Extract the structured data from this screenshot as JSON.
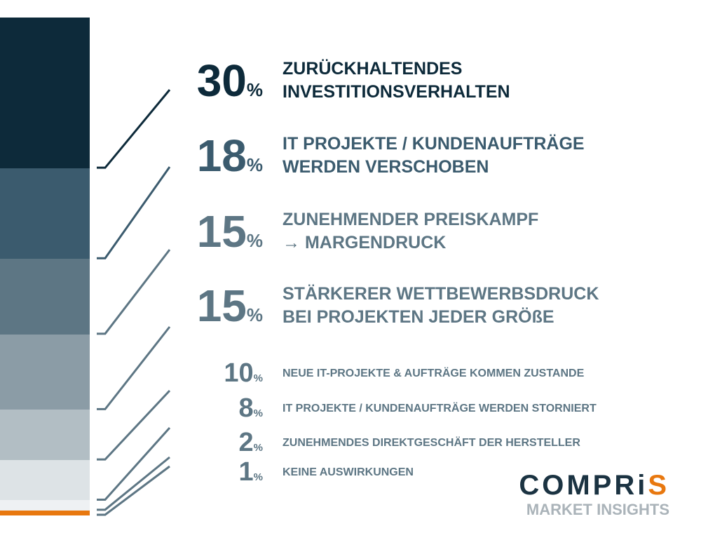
{
  "chart_data": {
    "type": "bar",
    "title": "",
    "xlabel": "",
    "ylabel": "",
    "unit": "%",
    "categories": [
      [
        "ZURÜCKHALTENDES",
        "INVESTITIONSVERHALTEN"
      ],
      [
        "IT PROJEKTE / KUNDENAUFTRÄGE",
        "WERDEN VERSCHOBEN"
      ],
      [
        "ZUNEHMENDER PREISKAMPF",
        "→ MARGENDRUCK"
      ],
      [
        "STÄRKERER WETTBEWERBSDRUCK",
        "BEI PROJEKTEN JEDER GRÖßE"
      ],
      [
        "NEUE IT-PROJEKTE & AUFTRÄGE KOMMEN ZUSTANDE"
      ],
      [
        "IT PROJEKTE / KUNDENAUFTRÄGE WERDEN STORNIERT"
      ],
      [
        "ZUNEHMENDES DIREKTGESCHÄFT DER HERSTELLER"
      ],
      [
        "KEINE AUSWIRKUNGEN"
      ]
    ],
    "values": [
      30,
      18,
      15,
      15,
      10,
      8,
      2,
      1
    ],
    "value_labels": [
      "30",
      "18",
      "15",
      "15",
      "10",
      "8",
      "2",
      "1"
    ],
    "colors": [
      "#0d2a3a",
      "#3b5b6e",
      "#5d7684",
      "#8b9ca6",
      "#b2bec4",
      "#dde3e6",
      "#eef1f3",
      "#e8780f"
    ],
    "label_colors": [
      "#0d2a3a",
      "#3b5b6e",
      "#5d7684",
      "#5d7684",
      "#5d7684",
      "#5d7684",
      "#5d7684",
      "#5d7684"
    ],
    "grid": false,
    "legend": "none"
  },
  "brand": {
    "name_main": "COMPRi",
    "name_accent": "S",
    "subtitle": "MARKET INSIGHTS",
    "accent_color": "#e8780f"
  }
}
